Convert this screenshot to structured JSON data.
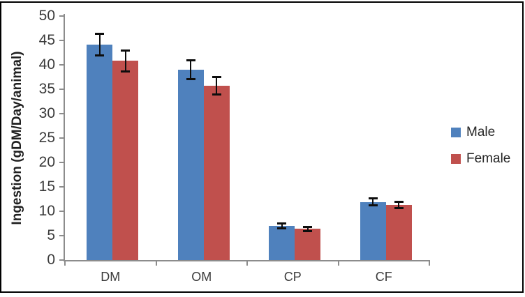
{
  "chart_data": {
    "type": "bar",
    "title": "",
    "xlabel": "",
    "ylabel": "Ingestion (gDM/Day/animal)",
    "categories": [
      "DM",
      "OM",
      "CP",
      "CF"
    ],
    "series": [
      {
        "name": "Male",
        "color": "#4F81BD",
        "values": [
          44.1,
          39.0,
          7.0,
          11.9
        ],
        "errors": [
          2.2,
          1.9,
          0.5,
          0.7
        ]
      },
      {
        "name": "Female",
        "color": "#C0504D",
        "values": [
          40.8,
          35.7,
          6.4,
          11.3
        ],
        "errors": [
          2.1,
          1.8,
          0.4,
          0.6
        ]
      }
    ],
    "ylim": [
      0,
      50
    ],
    "ytick_step": 5,
    "ytick_labels": [
      "0",
      "5",
      "10",
      "15",
      "20",
      "25",
      "30",
      "35",
      "40",
      "45",
      "50"
    ],
    "error_bars": true,
    "grid": false,
    "legend_position": "right",
    "colors": {
      "axis": "#8C8C8C",
      "error_bar": "#0D0D0D",
      "background": "#FFFFFF",
      "border": "#000000",
      "tick_text": "#3B3B3B"
    }
  }
}
